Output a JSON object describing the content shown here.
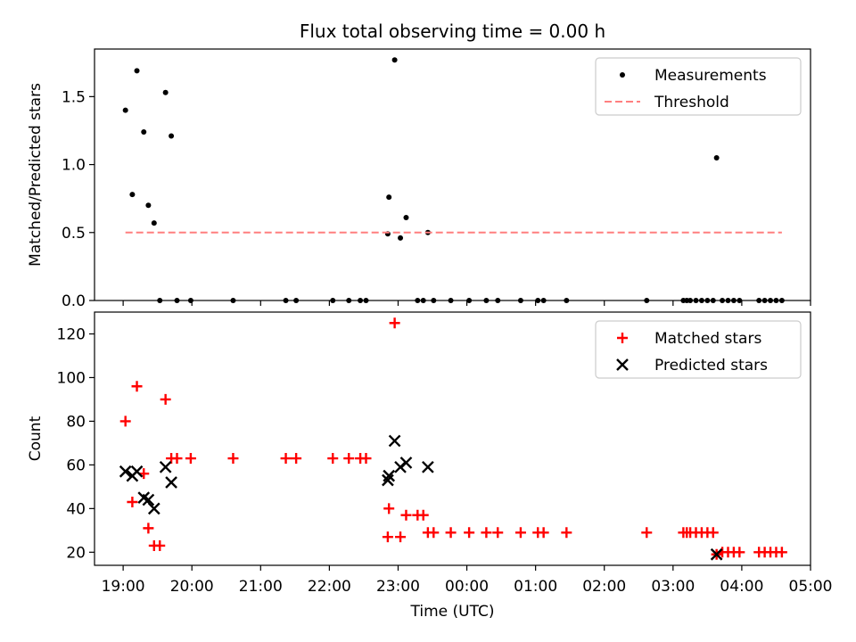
{
  "chart_data": [
    {
      "type": "scatter",
      "title": "Flux total observing time = 0.00 h",
      "ylabel": "Matched/Predicted stars",
      "xlabel": "",
      "xlim": [
        "18:35",
        "05:00"
      ],
      "ylim": [
        0,
        1.85
      ],
      "yticks": [
        0.0,
        0.5,
        1.0,
        1.5
      ],
      "ytick_labels": [
        "0.0",
        "0.5",
        "1.0",
        "1.5"
      ],
      "legend_position": "top-right",
      "series": [
        {
          "name": "Measurements",
          "marker": "dot",
          "color": "#000000",
          "points": [
            [
              "19:02",
              1.4
            ],
            [
              "19:08",
              0.78
            ],
            [
              "19:12",
              1.69
            ],
            [
              "19:18",
              1.24
            ],
            [
              "19:22",
              0.7
            ],
            [
              "19:27",
              0.57
            ],
            [
              "19:32",
              0.0
            ],
            [
              "19:37",
              1.53
            ],
            [
              "19:42",
              1.21
            ],
            [
              "19:47",
              0.0
            ],
            [
              "19:59",
              0.0
            ],
            [
              "20:36",
              0.0
            ],
            [
              "21:22",
              0.0
            ],
            [
              "21:31",
              0.0
            ],
            [
              "22:03",
              0.0
            ],
            [
              "22:17",
              0.0
            ],
            [
              "22:27",
              0.0
            ],
            [
              "22:32",
              0.0
            ],
            [
              "22:51",
              0.49
            ],
            [
              "22:52",
              0.76
            ],
            [
              "22:57",
              1.77
            ],
            [
              "23:02",
              0.46
            ],
            [
              "23:07",
              0.61
            ],
            [
              "23:17",
              0.0
            ],
            [
              "23:22",
              0.0
            ],
            [
              "23:26",
              0.5
            ],
            [
              "23:31",
              0.0
            ],
            [
              "23:46",
              0.0
            ],
            [
              "24:02",
              0.0
            ],
            [
              "24:17",
              0.0
            ],
            [
              "24:27",
              0.0
            ],
            [
              "24:47",
              0.0
            ],
            [
              "25:02",
              0.0
            ],
            [
              "25:07",
              0.0
            ],
            [
              "25:27",
              0.0
            ],
            [
              "26:37",
              0.0
            ],
            [
              "27:09",
              0.0
            ],
            [
              "27:12",
              0.0
            ],
            [
              "27:15",
              0.0
            ],
            [
              "27:20",
              0.0
            ],
            [
              "27:25",
              0.0
            ],
            [
              "27:30",
              0.0
            ],
            [
              "27:35",
              0.0
            ],
            [
              "27:38",
              1.05
            ],
            [
              "27:43",
              0.0
            ],
            [
              "27:48",
              0.0
            ],
            [
              "27:53",
              0.0
            ],
            [
              "27:58",
              0.0
            ],
            [
              "28:15",
              0.0
            ],
            [
              "28:20",
              0.0
            ],
            [
              "28:25",
              0.0
            ],
            [
              "28:30",
              0.0
            ],
            [
              "28:35",
              0.0
            ]
          ]
        },
        {
          "name": "Threshold",
          "marker": "dashed-line",
          "color": "#ff7f7f",
          "points": [
            [
              "19:02",
              0.5
            ],
            [
              "28:35",
              0.5
            ]
          ]
        }
      ]
    },
    {
      "type": "scatter",
      "title": "",
      "ylabel": "Count",
      "xlabel": "Time (UTC)",
      "xlim": [
        "18:35",
        "05:00"
      ],
      "ylim": [
        14,
        130
      ],
      "yticks": [
        20,
        40,
        60,
        80,
        100,
        120
      ],
      "ytick_labels": [
        "20",
        "40",
        "60",
        "80",
        "100",
        "120"
      ],
      "xtick_labels": [
        "19:00",
        "20:00",
        "21:00",
        "22:00",
        "23:00",
        "00:00",
        "01:00",
        "02:00",
        "03:00",
        "04:00",
        "05:00"
      ],
      "legend_position": "top-right",
      "series": [
        {
          "name": "Matched stars",
          "marker": "plus",
          "color": "#ff0000",
          "points": [
            [
              "19:02",
              80
            ],
            [
              "19:08",
              43
            ],
            [
              "19:12",
              96
            ],
            [
              "19:18",
              56
            ],
            [
              "19:22",
              31
            ],
            [
              "19:27",
              23
            ],
            [
              "19:32",
              23
            ],
            [
              "19:37",
              90
            ],
            [
              "19:42",
              63
            ],
            [
              "19:47",
              63
            ],
            [
              "19:59",
              63
            ],
            [
              "20:36",
              63
            ],
            [
              "21:22",
              63
            ],
            [
              "21:31",
              63
            ],
            [
              "22:03",
              63
            ],
            [
              "22:17",
              63
            ],
            [
              "22:27",
              63
            ],
            [
              "22:32",
              63
            ],
            [
              "22:51",
              27
            ],
            [
              "22:52",
              40
            ],
            [
              "22:57",
              125
            ],
            [
              "23:02",
              27
            ],
            [
              "23:07",
              37
            ],
            [
              "23:17",
              37
            ],
            [
              "23:22",
              37
            ],
            [
              "23:26",
              29
            ],
            [
              "23:31",
              29
            ],
            [
              "23:46",
              29
            ],
            [
              "24:02",
              29
            ],
            [
              "24:17",
              29
            ],
            [
              "24:27",
              29
            ],
            [
              "24:47",
              29
            ],
            [
              "25:02",
              29
            ],
            [
              "25:07",
              29
            ],
            [
              "25:27",
              29
            ],
            [
              "26:37",
              29
            ],
            [
              "27:09",
              29
            ],
            [
              "27:12",
              29
            ],
            [
              "27:15",
              29
            ],
            [
              "27:20",
              29
            ],
            [
              "27:25",
              29
            ],
            [
              "27:30",
              29
            ],
            [
              "27:35",
              29
            ],
            [
              "27:38",
              19
            ],
            [
              "27:43",
              20
            ],
            [
              "27:48",
              20
            ],
            [
              "27:53",
              20
            ],
            [
              "27:58",
              20
            ],
            [
              "28:15",
              20
            ],
            [
              "28:20",
              20
            ],
            [
              "28:25",
              20
            ],
            [
              "28:30",
              20
            ],
            [
              "28:35",
              20
            ]
          ]
        },
        {
          "name": "Predicted stars",
          "marker": "x",
          "color": "#000000",
          "points": [
            [
              "19:02",
              57
            ],
            [
              "19:08",
              55
            ],
            [
              "19:12",
              57
            ],
            [
              "19:18",
              45
            ],
            [
              "19:22",
              44
            ],
            [
              "19:27",
              40
            ],
            [
              "19:37",
              59
            ],
            [
              "19:42",
              52
            ],
            [
              "22:51",
              53
            ],
            [
              "22:52",
              55
            ],
            [
              "22:57",
              71
            ],
            [
              "23:02",
              59
            ],
            [
              "23:07",
              61
            ],
            [
              "23:26",
              59
            ],
            [
              "27:38",
              19
            ]
          ]
        }
      ]
    }
  ]
}
